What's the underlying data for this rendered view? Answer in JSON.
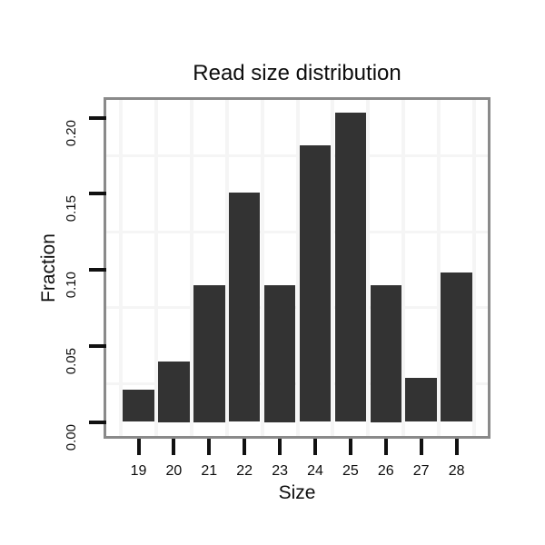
{
  "chart_data": {
    "type": "bar",
    "title": "Read size distribution",
    "xlabel": "Size",
    "ylabel": "Fraction",
    "categories": [
      "19",
      "20",
      "21",
      "22",
      "23",
      "24",
      "25",
      "26",
      "27",
      "28"
    ],
    "values": [
      0.021,
      0.04,
      0.09,
      0.151,
      0.09,
      0.182,
      0.203,
      0.09,
      0.029,
      0.098
    ],
    "ytick_labels": [
      "0.00",
      "0.05",
      "0.10",
      "0.15",
      "0.20"
    ],
    "ytick_values": [
      0.0,
      0.05,
      0.1,
      0.15,
      0.2
    ],
    "ylim": [
      -0.009,
      0.213
    ],
    "grid": "minor-horizontal-and-category-boundaries",
    "legend": "none",
    "colors": {
      "bar": "#333333",
      "panel_border": "#8a8a8a",
      "gridline": "#f5f5f5",
      "tick": "#111111",
      "text": "#0d0d0d",
      "background": "#ffffff"
    }
  }
}
